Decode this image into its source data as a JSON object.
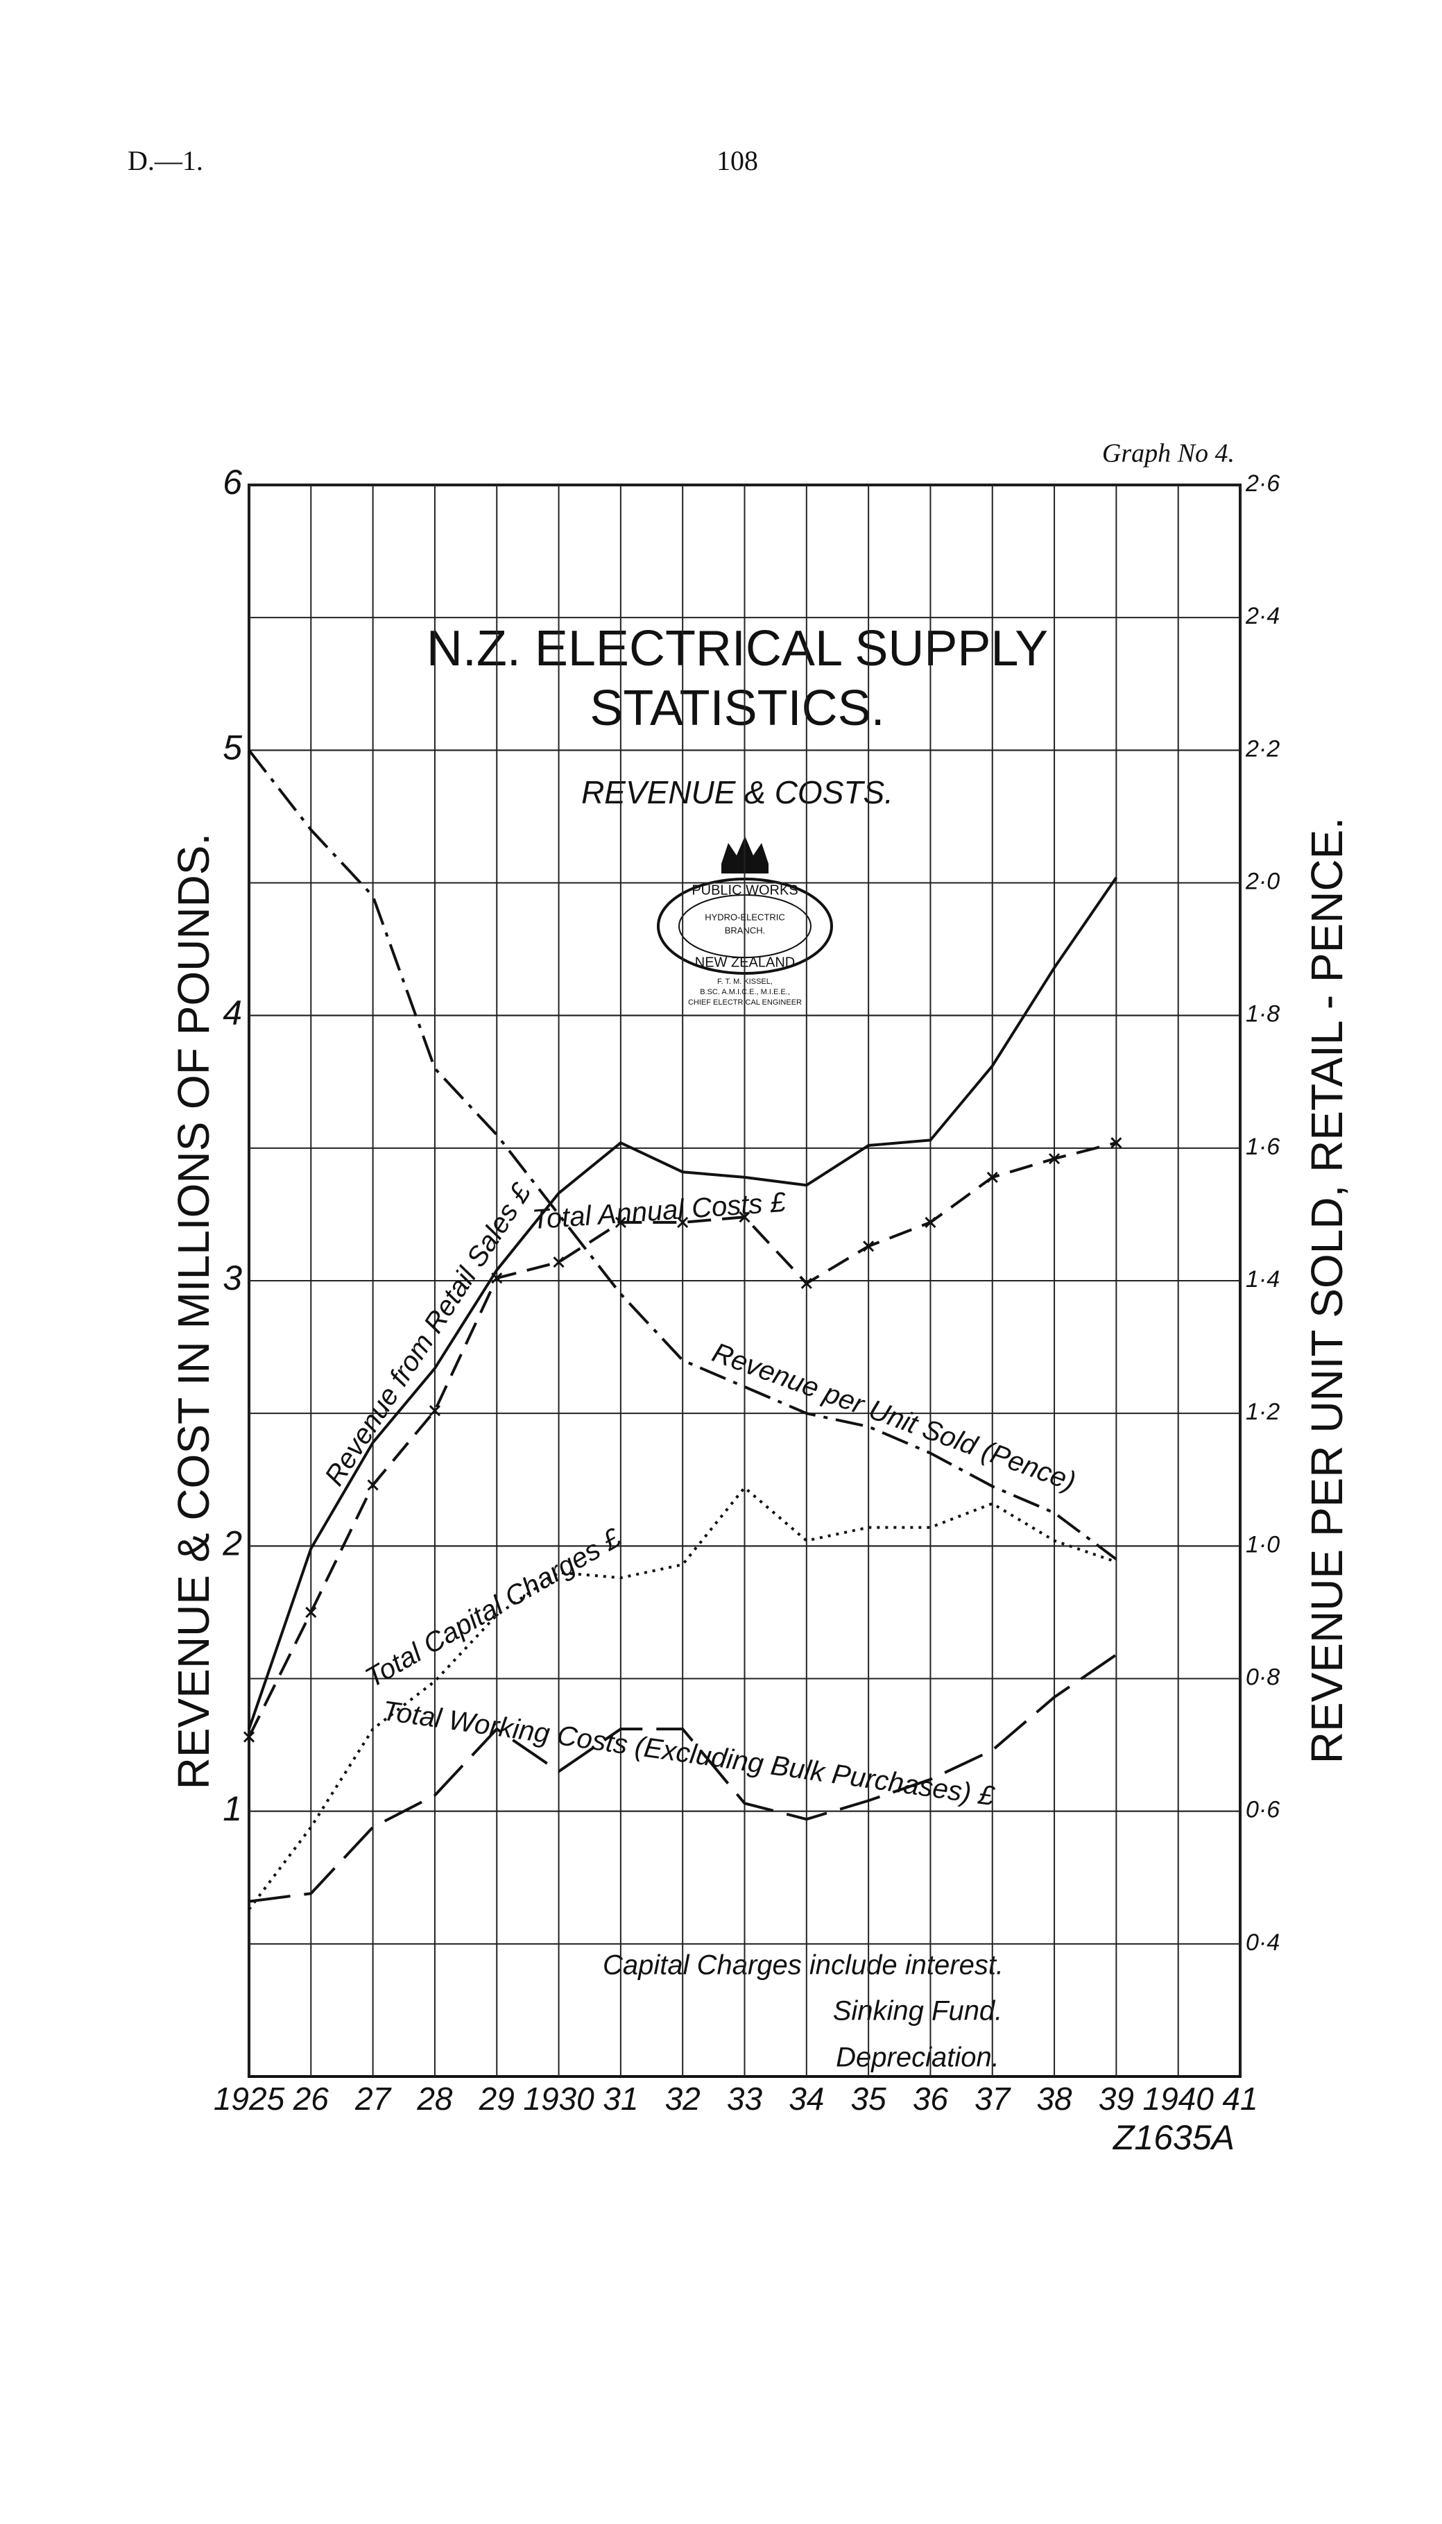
{
  "header": {
    "left": "D.—1.",
    "page": "108"
  },
  "chart_data": {
    "type": "line",
    "graph_label": "Graph No 4.",
    "title": [
      "N.Z. ELECTRICAL SUPPLY",
      "STATISTICS."
    ],
    "subtitle": "REVENUE & COSTS.",
    "emblem": {
      "top": "PUBLIC WORKS",
      "middle": [
        "HYDRO-ELECTRIC",
        "BRANCH."
      ],
      "bottom": "NEW ZEALAND",
      "credit": [
        "F. T. M. KISSEL,",
        "B.SC. A.M.I.C.E., M.I.E.E.,",
        "CHIEF ELECTRICAL ENGINEER"
      ]
    },
    "ylabel": "REVENUE & COST IN MILLIONS OF POUNDS.",
    "y2label": "REVENUE PER UNIT SOLD, RETAIL - PENCE.",
    "x": [
      1925,
      1926,
      1927,
      1928,
      1929,
      1930,
      1931,
      1932,
      1933,
      1934,
      1935,
      1936,
      1937,
      1938,
      1939
    ],
    "xlim": [
      1925,
      1941
    ],
    "xticks": [
      1925,
      {
        "value": 1926,
        "label": "26"
      },
      {
        "value": 1927,
        "label": "27"
      },
      {
        "value": 1928,
        "label": "28"
      },
      {
        "value": 1929,
        "label": "29"
      },
      1930,
      {
        "value": 1931,
        "label": "31"
      },
      {
        "value": 1932,
        "label": "32"
      },
      {
        "value": 1933,
        "label": "33"
      },
      {
        "value": 1934,
        "label": "34"
      },
      {
        "value": 1935,
        "label": "35"
      },
      {
        "value": 1936,
        "label": "36"
      },
      {
        "value": 1937,
        "label": "37"
      },
      {
        "value": 1938,
        "label": "38"
      },
      {
        "value": 1939,
        "label": "39"
      },
      1940,
      {
        "value": 1941,
        "label": "41"
      }
    ],
    "ylim": [
      0,
      6
    ],
    "yticks": [
      1,
      2,
      3,
      4,
      5,
      6
    ],
    "y2lim": [
      0.2,
      2.6
    ],
    "y2ticks": [
      {
        "value": 0.4,
        "label": "0·4"
      },
      {
        "value": 0.6,
        "label": "0·6"
      },
      {
        "value": 0.8,
        "label": "0·8"
      },
      {
        "value": 1.0,
        "label": "1·0"
      },
      {
        "value": 1.2,
        "label": "1·2"
      },
      {
        "value": 1.4,
        "label": "1·4"
      },
      {
        "value": 1.6,
        "label": "1·6"
      },
      {
        "value": 1.8,
        "label": "1·8"
      },
      {
        "value": 2.0,
        "label": "2·0"
      },
      {
        "value": 2.2,
        "label": "2·2"
      },
      {
        "value": 2.4,
        "label": "2·4"
      },
      {
        "value": 2.6,
        "label": "2·6"
      }
    ],
    "grid": true,
    "series": [
      {
        "name": "Revenue from Retail Sales £",
        "color": "#111",
        "dash": "solid",
        "values": [
          1.31,
          1.99,
          2.39,
          2.67,
          3.04,
          3.33,
          3.52,
          3.41,
          3.39,
          3.36,
          3.51,
          3.53,
          3.81,
          4.18,
          4.52
        ]
      },
      {
        "name": "Total Annual Costs £",
        "color": "#111",
        "dash": "dashed",
        "marker": "x",
        "values": [
          1.28,
          1.75,
          2.23,
          2.51,
          3.01,
          3.07,
          3.22,
          3.22,
          3.24,
          2.99,
          3.13,
          3.22,
          3.39,
          3.46,
          3.52
        ]
      },
      {
        "name": "Revenue per Unit Sold (Pence)",
        "color": "#111",
        "dash": "dashdot",
        "axis": "y2",
        "values": [
          2.2,
          2.08,
          1.98,
          1.72,
          1.62,
          1.5,
          1.38,
          1.28,
          1.24,
          1.2,
          1.18,
          1.14,
          1.09,
          1.05,
          0.98
        ]
      },
      {
        "name": "Total Capital Charges £",
        "color": "#111",
        "dash": "dotted",
        "values": [
          0.63,
          0.94,
          1.31,
          1.49,
          1.74,
          1.9,
          1.88,
          1.93,
          2.22,
          2.02,
          2.07,
          2.07,
          2.16,
          2.02,
          1.94
        ]
      },
      {
        "name": "Total Working Costs (Excluding Bulk Purchases) £",
        "color": "#111",
        "dash": "longdash",
        "values": [
          0.66,
          0.69,
          0.94,
          1.06,
          1.31,
          1.15,
          1.31,
          1.31,
          1.03,
          0.97,
          1.04,
          1.12,
          1.23,
          1.43,
          1.59
        ]
      }
    ],
    "notes": [
      "Capital Charges include interest.",
      "Sinking Fund.",
      "Depreciation."
    ],
    "reference": "Z1635A"
  }
}
